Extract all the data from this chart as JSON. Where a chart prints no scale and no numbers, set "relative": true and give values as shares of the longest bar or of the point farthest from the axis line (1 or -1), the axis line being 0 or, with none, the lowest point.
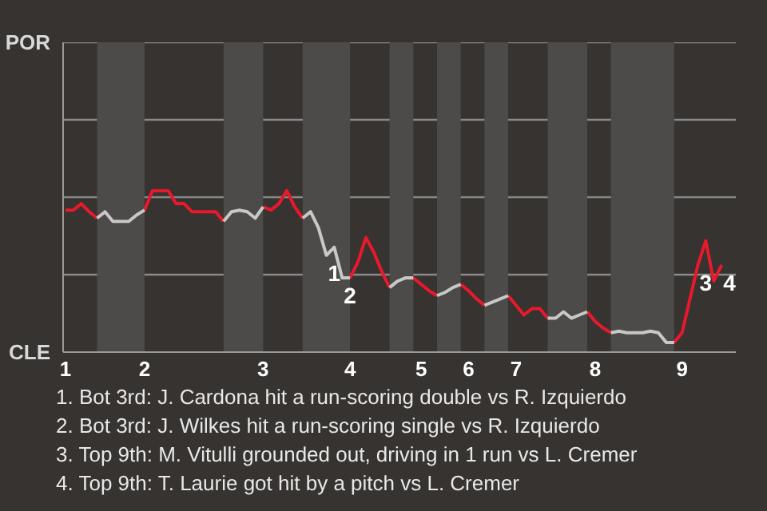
{
  "chart_data": {
    "type": "line",
    "relative": true,
    "categories": [
      "1",
      null,
      null,
      null,
      null,
      null,
      null,
      null,
      null,
      null,
      "2",
      null,
      null,
      null,
      null,
      null,
      null,
      null,
      null,
      null,
      null,
      null,
      null,
      null,
      null,
      "3",
      null,
      null,
      null,
      null,
      null,
      null,
      null,
      null,
      null,
      null,
      "4",
      null,
      null,
      null,
      null,
      null,
      null,
      null,
      null,
      "5",
      null,
      null,
      null,
      null,
      null,
      "6",
      null,
      null,
      null,
      null,
      null,
      "7",
      null,
      null,
      null,
      null,
      null,
      null,
      null,
      null,
      null,
      "8",
      null,
      null,
      null,
      null,
      null,
      null,
      null,
      null,
      null,
      null,
      "9",
      null,
      null,
      null,
      null,
      null
    ],
    "series": [
      {
        "color": "#e8192c",
        "values": [
          0.88,
          0.88,
          0.92,
          0.87,
          0.83,
          null,
          null,
          null,
          null,
          null,
          0.88,
          1,
          1,
          1,
          0.92,
          0.92,
          0.87,
          0.87,
          0.87,
          0.87,
          0.81,
          null,
          null,
          null,
          null,
          0.9,
          0.88,
          0.92,
          1,
          0.9,
          0.83,
          null,
          null,
          null,
          null,
          null,
          0.46,
          0.56,
          0.71,
          0.62,
          0.5,
          0.4,
          null,
          null,
          0.46,
          0.42,
          0.38,
          0.35,
          null,
          null,
          0.42,
          0.38,
          0.33,
          0.29,
          null,
          null,
          0.35,
          0.29,
          0.23,
          0.27,
          0.27,
          0.21,
          null,
          null,
          null,
          null,
          0.25,
          0.19,
          0.15,
          0.12,
          null,
          null,
          null,
          null,
          null,
          null,
          null,
          0.06,
          0.12,
          0.33,
          0.54,
          0.69,
          0.44,
          0.54
        ]
      },
      {
        "color": "#c8c8c8",
        "values": [
          null,
          null,
          null,
          null,
          0.83,
          0.87,
          0.81,
          0.81,
          0.81,
          0.85,
          0.88,
          null,
          null,
          null,
          null,
          null,
          null,
          null,
          null,
          null,
          0.81,
          0.87,
          0.88,
          0.87,
          0.83,
          0.9,
          null,
          null,
          null,
          null,
          0.83,
          0.87,
          0.77,
          0.6,
          0.65,
          0.46,
          0.46,
          null,
          null,
          null,
          null,
          0.4,
          0.44,
          0.46,
          0.46,
          null,
          null,
          0.35,
          0.37,
          0.4,
          0.42,
          null,
          null,
          0.29,
          0.31,
          0.33,
          0.35,
          null,
          null,
          null,
          null,
          0.21,
          0.21,
          0.25,
          0.21,
          0.23,
          0.25,
          null,
          null,
          0.12,
          0.13,
          0.12,
          0.12,
          0.12,
          0.13,
          0.12,
          0.06,
          0.06,
          null,
          null,
          null,
          null,
          null,
          null
        ]
      }
    ],
    "ref_lines": [
      {
        "axis": "y",
        "value": 0.48,
        "color": "#8a8a8a"
      },
      {
        "axis": "y",
        "value": 0.96,
        "color": "#8a8a8a"
      },
      {
        "axis": "y",
        "value": 1.44,
        "color": "#8a8a8a"
      },
      {
        "axis": "y",
        "value": 1.92,
        "color": "#8a8a8a"
      }
    ],
    "marker": "none",
    "line_style": "solid",
    "annotations": [
      "POR",
      "CLE",
      {
        "text": "1",
        "y": 0.6
      },
      {
        "text": "2",
        "y": 0.46
      },
      {
        "text": "3",
        "y": 0.54
      },
      {
        "text": "4",
        "y": 0.54
      },
      "1. Bot 3rd: J. Cardona hit a run-scoring double vs R. Izquierdo",
      "2. Bot 3rd: J. Wilkes hit a run-scoring single vs R. Izquierdo",
      "3. Top 9th: M. Vitulli grounded out, driving in 1 run vs L. Cremer",
      "4. Top 9th: T. Laurie got hit by a pitch vs L. Cremer"
    ]
  }
}
